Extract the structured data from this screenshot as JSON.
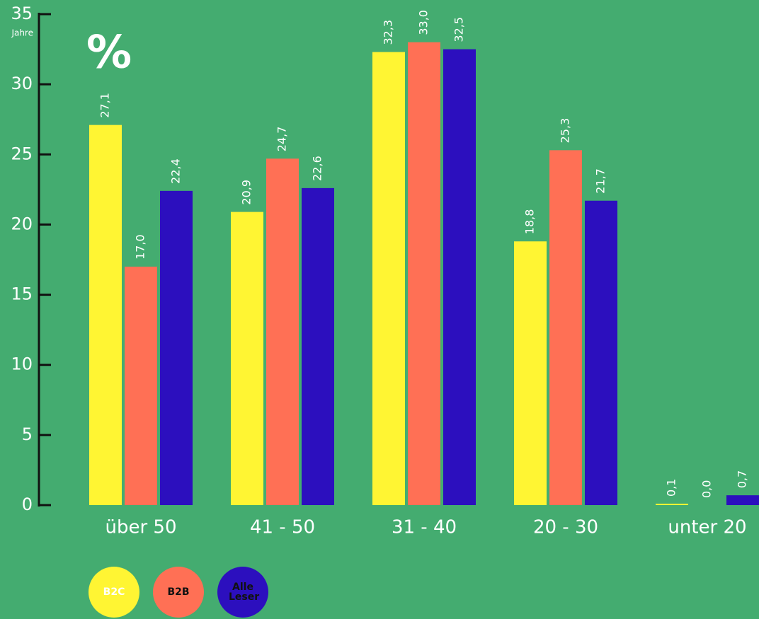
{
  "chart_data": {
    "type": "bar",
    "title": "%",
    "y_label": "Jahre",
    "categories": [
      "über 50",
      "41 - 50",
      "31 - 40",
      "20 - 30",
      "unter 20"
    ],
    "series": [
      {
        "name": "B2C",
        "color": "#fff533",
        "values": [
          27.1,
          20.9,
          32.3,
          18.8,
          0.1
        ],
        "value_labels": [
          "27,1",
          "20,9",
          "32,3",
          "18,8",
          "0,1"
        ]
      },
      {
        "name": "B2B",
        "color": "#ff7055",
        "values": [
          17.0,
          24.7,
          33.0,
          25.3,
          0.0
        ],
        "value_labels": [
          "17,0",
          "24,7",
          "33,0",
          "25,3",
          "0,0"
        ]
      },
      {
        "name": "Alle Leser",
        "color": "#2c0fbe",
        "values": [
          22.4,
          22.6,
          32.5,
          21.7,
          0.7
        ],
        "value_labels": [
          "22,4",
          "22,6",
          "32,5",
          "21,7",
          "0,7"
        ]
      }
    ],
    "ylim": [
      0,
      35
    ],
    "yticks": [
      0,
      5,
      10,
      15,
      20,
      25,
      30,
      35
    ]
  }
}
